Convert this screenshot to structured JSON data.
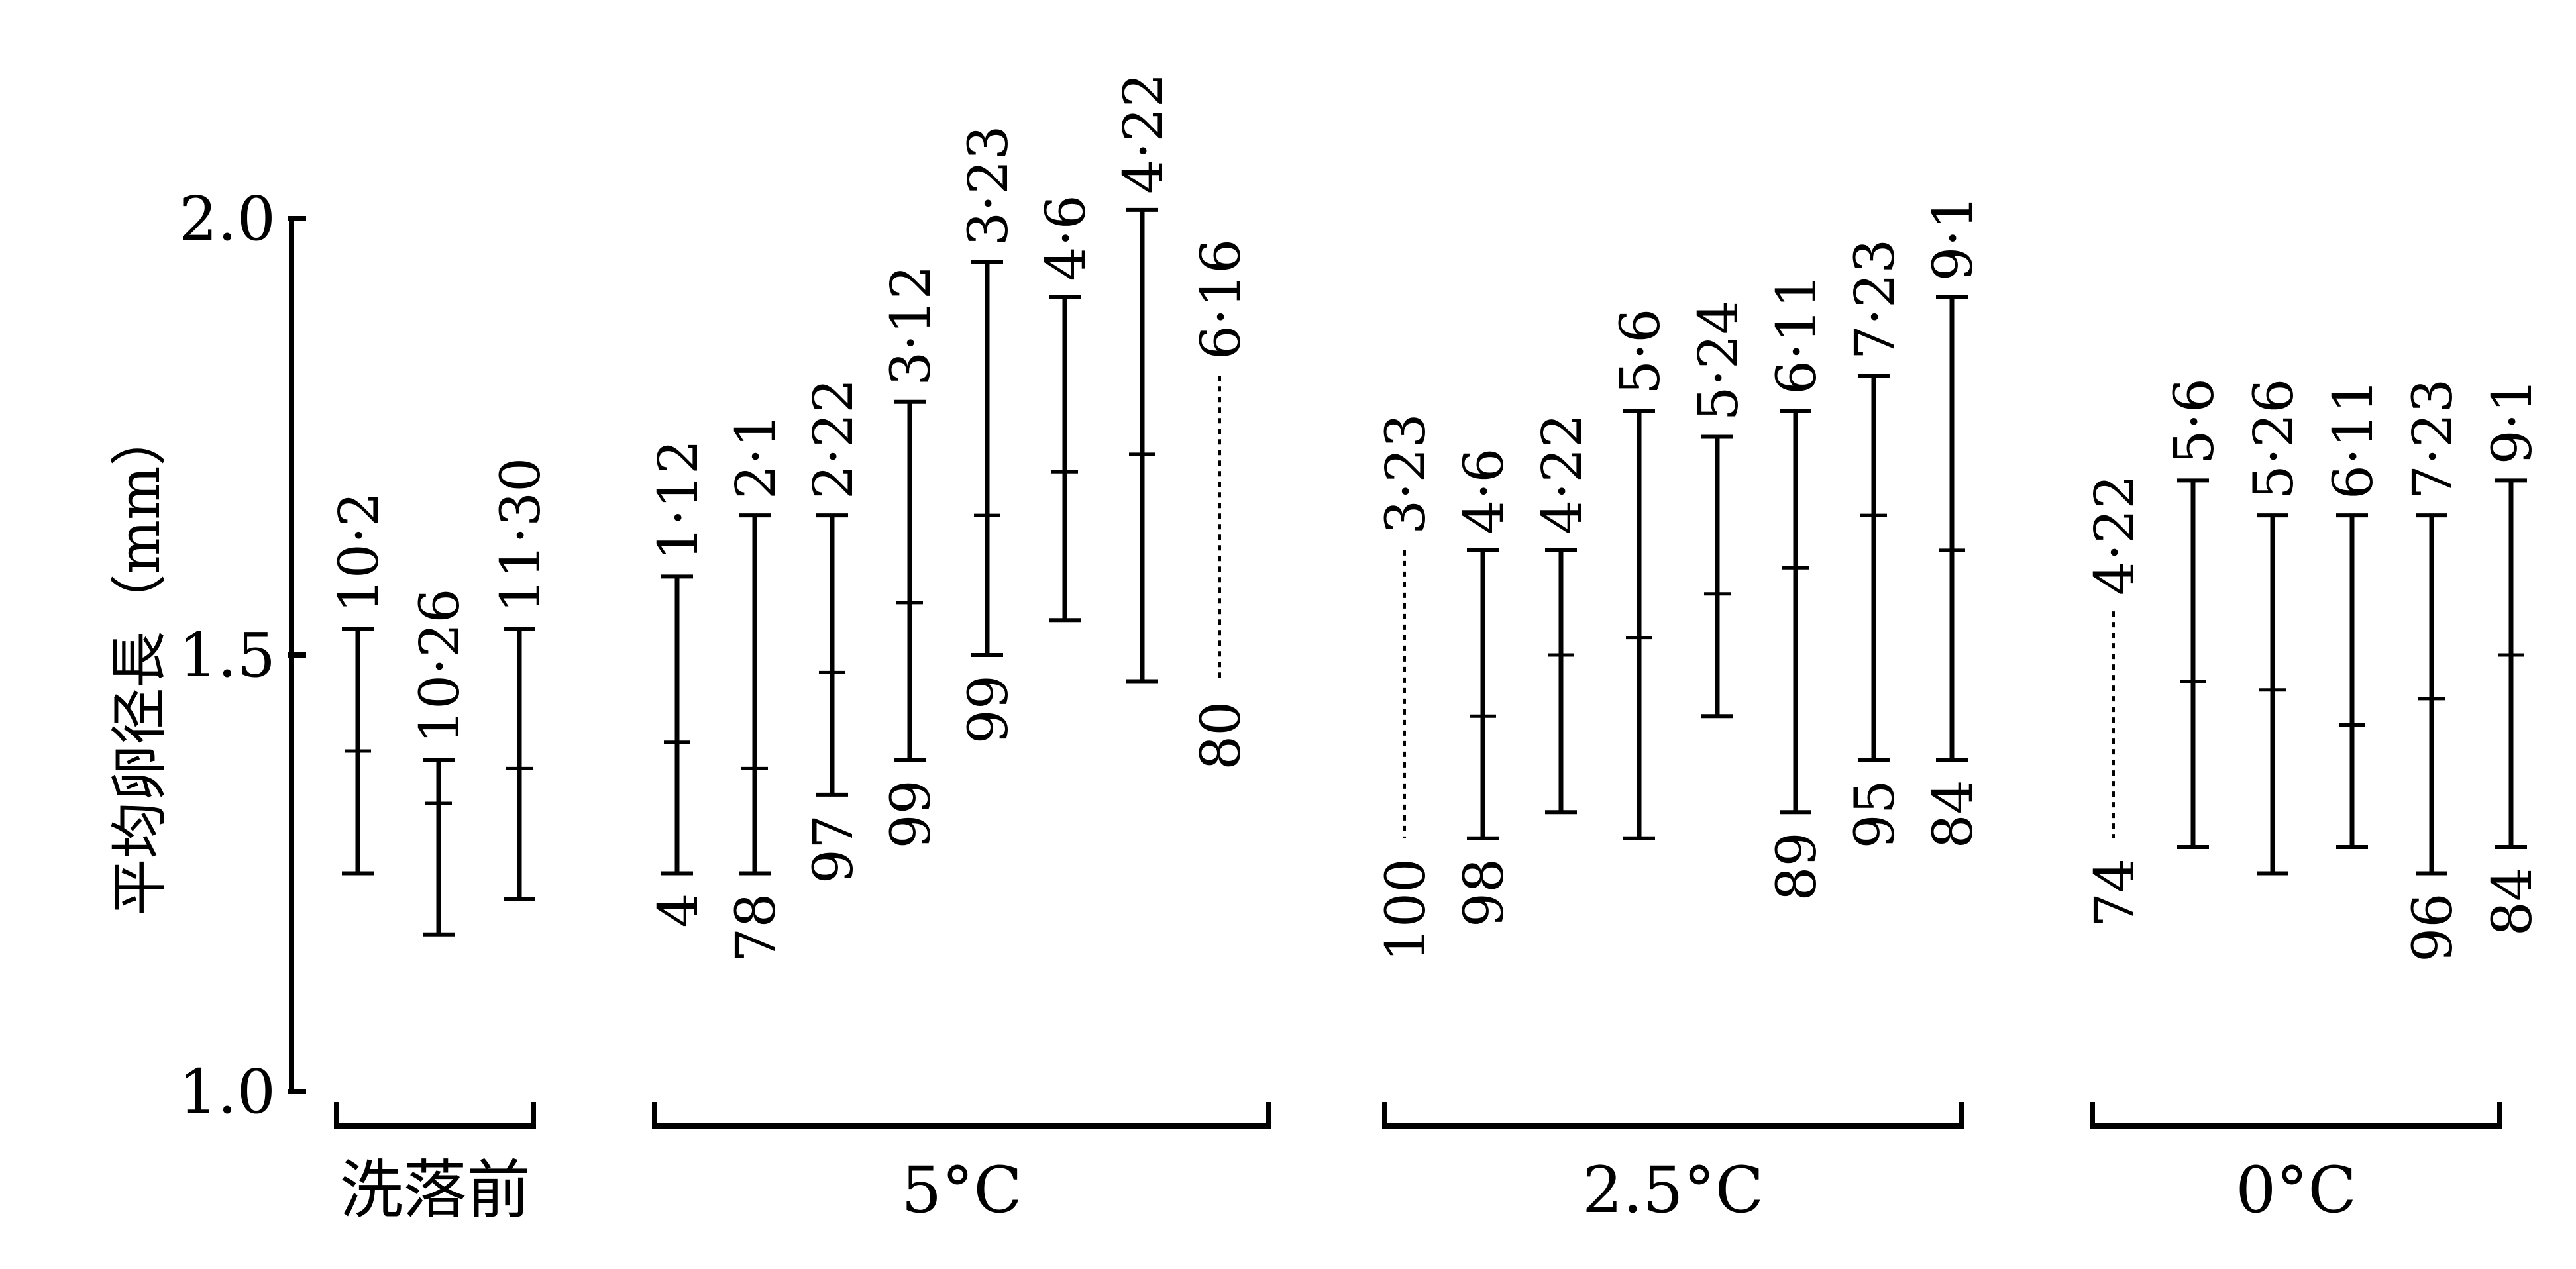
{
  "chart_data": {
    "type": "range",
    "ylabel": "平均卵径長（mm）",
    "y_range": [
      1.0,
      2.0
    ],
    "yticks": [
      "1.0",
      "1.5",
      "2.0"
    ],
    "groups": [
      {
        "label": "洗落前",
        "items": [
          {
            "date": "10·2",
            "min": 1.25,
            "mean": 1.39,
            "max": 1.53,
            "n": "",
            "dashed": false
          },
          {
            "date": "10·26",
            "min": 1.18,
            "mean": 1.33,
            "max": 1.38,
            "n": "",
            "dashed": false
          },
          {
            "date": "11·30",
            "min": 1.22,
            "mean": 1.37,
            "max": 1.53,
            "n": "",
            "dashed": false
          }
        ]
      },
      {
        "label": "5°C",
        "items": [
          {
            "date": "1·12",
            "min": 1.25,
            "mean": 1.4,
            "max": 1.59,
            "n": "4",
            "dashed": false
          },
          {
            "date": "2·1",
            "min": 1.25,
            "mean": 1.37,
            "max": 1.66,
            "n": "78",
            "dashed": false
          },
          {
            "date": "2·22",
            "min": 1.34,
            "mean": 1.48,
            "max": 1.66,
            "n": "97",
            "dashed": false
          },
          {
            "date": "3·12",
            "min": 1.38,
            "mean": 1.56,
            "max": 1.79,
            "n": "99",
            "dashed": false
          },
          {
            "date": "3·23",
            "min": 1.5,
            "mean": 1.66,
            "max": 1.95,
            "n": "99",
            "dashed": false
          },
          {
            "date": "4·6",
            "min": 1.54,
            "mean": 1.71,
            "max": 1.91,
            "n": "",
            "dashed": false
          },
          {
            "date": "4·22",
            "min": 1.47,
            "mean": 1.73,
            "max": 2.01,
            "n": "",
            "dashed": false
          },
          {
            "date": "6·16",
            "min": 1.47,
            "mean": null,
            "max": 1.82,
            "n": "80",
            "dashed": true
          }
        ]
      },
      {
        "label": "2.5°C",
        "items": [
          {
            "date": "3·23",
            "min": 1.29,
            "mean": null,
            "max": 1.62,
            "n": "100",
            "dashed": true
          },
          {
            "date": "4·6",
            "min": 1.29,
            "mean": 1.43,
            "max": 1.62,
            "n": "98",
            "dashed": false
          },
          {
            "date": "4·22",
            "min": 1.32,
            "mean": 1.5,
            "max": 1.62,
            "n": "",
            "dashed": false
          },
          {
            "date": "5·6",
            "min": 1.29,
            "mean": 1.52,
            "max": 1.78,
            "n": "",
            "dashed": false
          },
          {
            "date": "5·24",
            "min": 1.43,
            "mean": 1.57,
            "max": 1.75,
            "n": "",
            "dashed": false
          },
          {
            "date": "6·11",
            "min": 1.32,
            "mean": 1.6,
            "max": 1.78,
            "n": "89",
            "dashed": false
          },
          {
            "date": "7·23",
            "min": 1.38,
            "mean": 1.66,
            "max": 1.82,
            "n": "95",
            "dashed": false
          },
          {
            "date": "9·1",
            "min": 1.38,
            "mean": 1.62,
            "max": 1.91,
            "n": "84",
            "dashed": false
          }
        ]
      },
      {
        "label": "0°C",
        "items": [
          {
            "date": "4·22",
            "min": 1.29,
            "mean": null,
            "max": 1.55,
            "n": "74",
            "dashed": true
          },
          {
            "date": "5·6",
            "min": 1.28,
            "mean": 1.47,
            "max": 1.7,
            "n": "",
            "dashed": false
          },
          {
            "date": "5·26",
            "min": 1.25,
            "mean": 1.46,
            "max": 1.66,
            "n": "",
            "dashed": false
          },
          {
            "date": "6·11",
            "min": 1.28,
            "mean": 1.42,
            "max": 1.66,
            "n": "",
            "dashed": false
          },
          {
            "date": "7·23",
            "min": 1.25,
            "mean": 1.45,
            "max": 1.66,
            "n": "96",
            "dashed": false
          },
          {
            "date": "9·1",
            "min": 1.28,
            "mean": 1.5,
            "max": 1.7,
            "n": "84",
            "dashed": false
          }
        ]
      }
    ]
  }
}
